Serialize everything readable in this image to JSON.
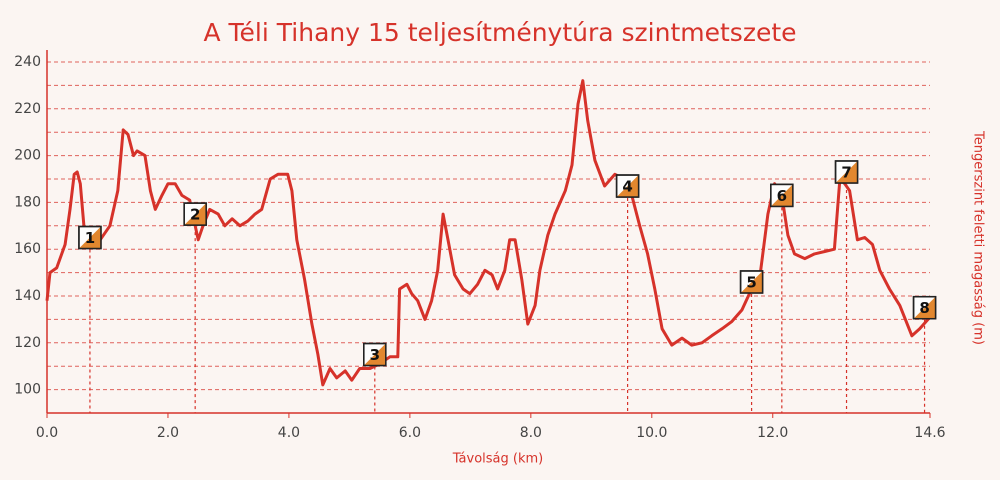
{
  "chart_data": {
    "type": "line",
    "title": "A Téli Tihany 15 teljesítménytúra szintmetszete",
    "x_label": "Távolság (km)",
    "y_label": "Tengerszint feletti magasság (m)",
    "color": "#d6322a",
    "x": [
      0,
      0.05,
      0.16,
      0.3,
      0.38,
      0.45,
      0.5,
      0.55,
      0.61,
      0.71,
      0.88,
      1.04,
      1.17,
      1.26,
      1.34,
      1.43,
      1.49,
      1.62,
      1.71,
      1.79,
      1.9,
      2.0,
      2.12,
      2.23,
      2.36,
      2.5,
      2.58,
      2.69,
      2.83,
      2.94,
      3.06,
      3.19,
      3.32,
      3.44,
      3.55,
      3.69,
      3.82,
      3.98,
      4.05,
      4.13,
      4.26,
      4.38,
      4.48,
      4.56,
      4.68,
      4.79,
      4.93,
      5.04,
      5.17,
      5.34,
      5.5,
      5.67,
      5.8,
      5.83,
      5.95,
      6.03,
      6.13,
      6.25,
      6.36,
      6.46,
      6.55,
      6.63,
      6.74,
      6.88,
      6.99,
      7.12,
      7.24,
      7.36,
      7.45,
      7.57,
      7.65,
      7.74,
      7.85,
      7.95,
      8.07,
      8.15,
      8.28,
      8.4,
      8.57,
      8.68,
      8.78,
      8.86,
      8.94,
      9.06,
      9.22,
      9.39,
      9.55,
      9.67,
      9.8,
      9.93,
      10.05,
      10.17,
      10.33,
      10.5,
      10.66,
      10.83,
      10.99,
      11.16,
      11.32,
      11.49,
      11.65,
      11.79,
      11.92,
      12.03,
      12.15,
      12.25,
      12.36,
      12.53,
      12.69,
      12.86,
      13.02,
      13.11,
      13.19,
      13.27,
      13.4,
      13.52,
      13.65,
      13.77,
      13.93,
      14.1,
      14.3,
      14.43,
      14.6
    ],
    "values": [
      138,
      150,
      152,
      162,
      177,
      192,
      193,
      188,
      170,
      164,
      164,
      170,
      185,
      211,
      209,
      200,
      202,
      200,
      185,
      177,
      183,
      188,
      188,
      183,
      181,
      164,
      170,
      177,
      175,
      170,
      173,
      170,
      172,
      175,
      177,
      190,
      192,
      192,
      185,
      164,
      147,
      128,
      115,
      102,
      109,
      105,
      108,
      104,
      109,
      109,
      111,
      114,
      114,
      143,
      145,
      141,
      138,
      130,
      138,
      151,
      175,
      164,
      149,
      143,
      141,
      145,
      151,
      149,
      143,
      151,
      164,
      164,
      147,
      128,
      136,
      151,
      166,
      175,
      185,
      196,
      222,
      232,
      215,
      198,
      187,
      192,
      190,
      183,
      170,
      158,
      143,
      126,
      119,
      122,
      119,
      120,
      123,
      126,
      129,
      134,
      143,
      149,
      175,
      188,
      183,
      166,
      158,
      156,
      158,
      159,
      160,
      190,
      188,
      185,
      164,
      165,
      162,
      151,
      143,
      136,
      123,
      126,
      131
    ],
    "checkpoints": [
      {
        "label": "1",
        "x": 0.71,
        "elevation": 165
      },
      {
        "label": "2",
        "x": 2.45,
        "elevation": 175
      },
      {
        "label": "3",
        "x": 5.42,
        "elevation": 115
      },
      {
        "label": "4",
        "x": 9.6,
        "elevation": 187
      },
      {
        "label": "5",
        "x": 11.65,
        "elevation": 146
      },
      {
        "label": "6",
        "x": 12.15,
        "elevation": 183
      },
      {
        "label": "7",
        "x": 13.22,
        "elevation": 193
      },
      {
        "label": "8",
        "x": 14.51,
        "elevation": 135
      }
    ],
    "xlim": [
      0,
      14.6
    ],
    "xticks": [
      {
        "value": 0,
        "label": "0.0"
      },
      {
        "value": 2,
        "label": "2.0"
      },
      {
        "value": 4,
        "label": "4.0"
      },
      {
        "value": 6,
        "label": "6.0"
      },
      {
        "value": 8,
        "label": "8.0"
      },
      {
        "value": 10,
        "label": "10.0"
      },
      {
        "value": 12,
        "label": "12.0"
      },
      14.6
    ],
    "ylim": [
      90,
      240
    ],
    "yticks": [
      100,
      120,
      140,
      160,
      180,
      200,
      220,
      240
    ],
    "minor_yticks": [
      90,
      110,
      130,
      150,
      170,
      190,
      210,
      230
    ],
    "grid": true
  }
}
